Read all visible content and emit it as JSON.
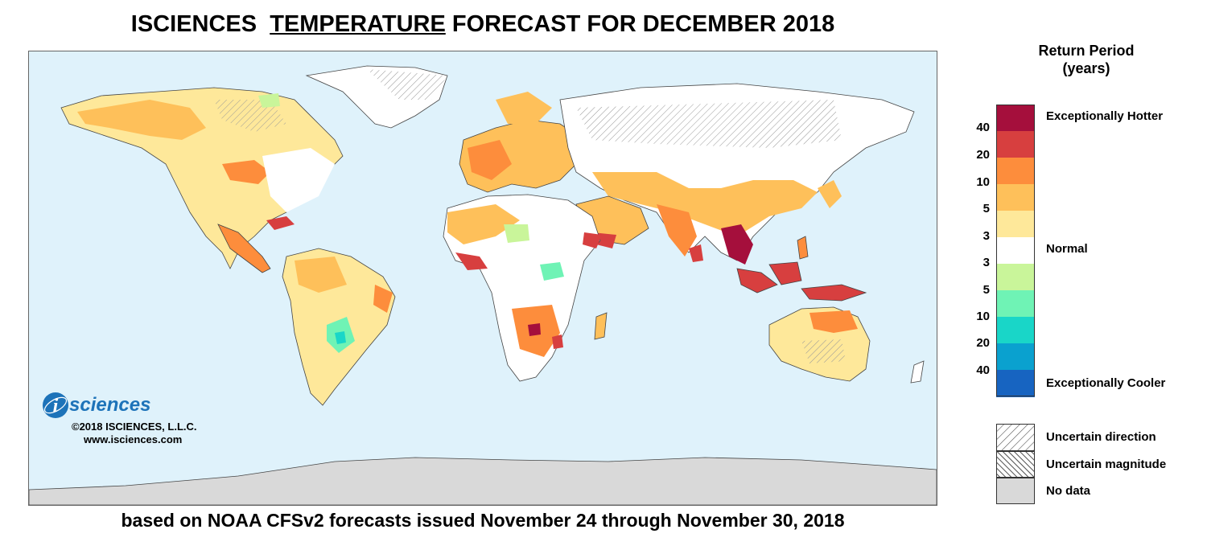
{
  "title": {
    "pre": "ISCIENCES",
    "underlined": "TEMPERATURE",
    "post": "FORECAST FOR DECEMBER 2018"
  },
  "footer": "based on NOAA CFSv2 forecasts issued November 24 through November 30, 2018",
  "logo": {
    "letter": "i",
    "word": "sciences",
    "copyright": "©2018 ISCIENCES, L.L.C.",
    "website": "www.isciences.com"
  },
  "legend": {
    "title_line1": "Return Period",
    "title_line2": "(years)",
    "ticks": [
      "40",
      "20",
      "10",
      "5",
      "3",
      "3",
      "5",
      "10",
      "20",
      "40"
    ],
    "labels": {
      "hotter": "Exceptionally Hotter",
      "normal": "Normal",
      "cooler": "Exceptionally Cooler"
    },
    "colors": [
      "#a50f3c",
      "#d73f3f",
      "#fd8d3c",
      "#fec05a",
      "#fee89a",
      "#ffffff",
      "#c9f59a",
      "#6ff3b5",
      "#19d6c8",
      "#0aa1cf",
      "#1764c1"
    ],
    "hatch": {
      "uncertain_direction": "Uncertain direction",
      "uncertain_magnitude": "Uncertain magnitude",
      "no_data": "No data"
    },
    "no_data_color": "#d9d9d9"
  },
  "map_colors": {
    "ocean": "#dff2fb",
    "antarctica": "#d9d9d9"
  }
}
